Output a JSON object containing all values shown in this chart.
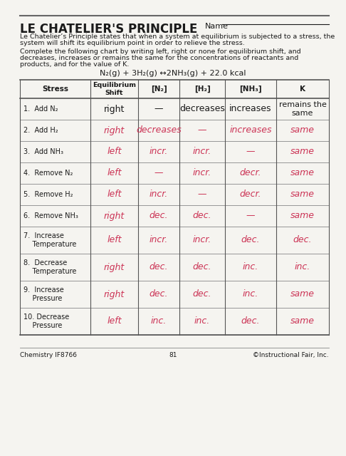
{
  "title": "LE CHATELIER'S PRINCIPLE",
  "name_label": "Name",
  "description1": "Le Chatelier’s Principle states that when a system at equilibrium is subjected to a stress, the",
  "description2": "system will shift its equilibrium point in order to relieve the stress.",
  "instruction1": "Complete the following chart by writing left, right or none for equilibrium shift, and",
  "instruction2": "decreases, increases or remains the same for the concentrations of reactants and",
  "instruction3": "products, and for the value of K.",
  "equation": "N₂(g) + 3H₂(g) ↔2NH₃(g) + 22.0 kcal",
  "col_headers": [
    "Stress",
    "Equilibrium\nShift",
    "[N₂]",
    "[H₂]",
    "[NH₃]",
    "K"
  ],
  "rows": [
    {
      "stress": "1.  Add N₂",
      "shift": "right",
      "shift_hw": false,
      "N2": "—",
      "N2_hw": false,
      "H2": "decreases",
      "H2_hw": false,
      "NH3": "increases",
      "NH3_hw": false,
      "K": "remains the\nsame",
      "K_hw": false
    },
    {
      "stress": "2.  Add H₂",
      "shift": "right",
      "shift_hw": true,
      "N2": "decreases",
      "N2_hw": true,
      "H2": "—",
      "H2_hw": true,
      "NH3": "increases",
      "NH3_hw": true,
      "K": "same",
      "K_hw": true
    },
    {
      "stress": "3.  Add NH₃",
      "shift": "left",
      "shift_hw": true,
      "N2": "incr.",
      "N2_hw": true,
      "H2": "incr.",
      "H2_hw": true,
      "NH3": "—",
      "NH3_hw": true,
      "K": "same",
      "K_hw": true
    },
    {
      "stress": "4.  Remove N₂",
      "shift": "left",
      "shift_hw": true,
      "N2": "—",
      "N2_hw": true,
      "H2": "incr.",
      "H2_hw": true,
      "NH3": "decr.",
      "NH3_hw": true,
      "K": "same",
      "K_hw": true
    },
    {
      "stress": "5.  Remove H₂",
      "shift": "left",
      "shift_hw": true,
      "N2": "incr.",
      "N2_hw": true,
      "H2": "—",
      "H2_hw": true,
      "NH3": "decr.",
      "NH3_hw": true,
      "K": "same",
      "K_hw": true
    },
    {
      "stress": "6.  Remove NH₃",
      "shift": "right",
      "shift_hw": true,
      "N2": "dec.",
      "N2_hw": true,
      "H2": "dec.",
      "H2_hw": true,
      "NH3": "—",
      "NH3_hw": true,
      "K": "same",
      "K_hw": true
    },
    {
      "stress": "7.  Increase\n    Temperature",
      "shift": "left",
      "shift_hw": true,
      "N2": "incr.",
      "N2_hw": true,
      "H2": "incr.",
      "H2_hw": true,
      "NH3": "dec.",
      "NH3_hw": true,
      "K": "dec.",
      "K_hw": true
    },
    {
      "stress": "8.  Decrease\n    Temperature",
      "shift": "right",
      "shift_hw": true,
      "N2": "dec.",
      "N2_hw": true,
      "H2": "dec.",
      "H2_hw": true,
      "NH3": "inc.",
      "NH3_hw": true,
      "K": "inc.",
      "K_hw": true
    },
    {
      "stress": "9.  Increase\n    Pressure",
      "shift": "right",
      "shift_hw": true,
      "N2": "dec.",
      "N2_hw": true,
      "H2": "dec.",
      "H2_hw": true,
      "NH3": "inc.",
      "NH3_hw": true,
      "K": "same",
      "K_hw": true
    },
    {
      "stress": "10. Decrease\n    Pressure",
      "shift": "left",
      "shift_hw": true,
      "N2": "inc.",
      "N2_hw": true,
      "H2": "inc.",
      "H2_hw": true,
      "NH3": "dec.",
      "NH3_hw": true,
      "K": "same",
      "K_hw": true
    }
  ],
  "printed_color": "#1a1a1a",
  "handwritten_color": "#cc3355",
  "bg_color": "#f5f4f0",
  "footer_left": "Chemistry IF8766",
  "footer_center": "81",
  "footer_right": "©Instructional Fair, Inc."
}
